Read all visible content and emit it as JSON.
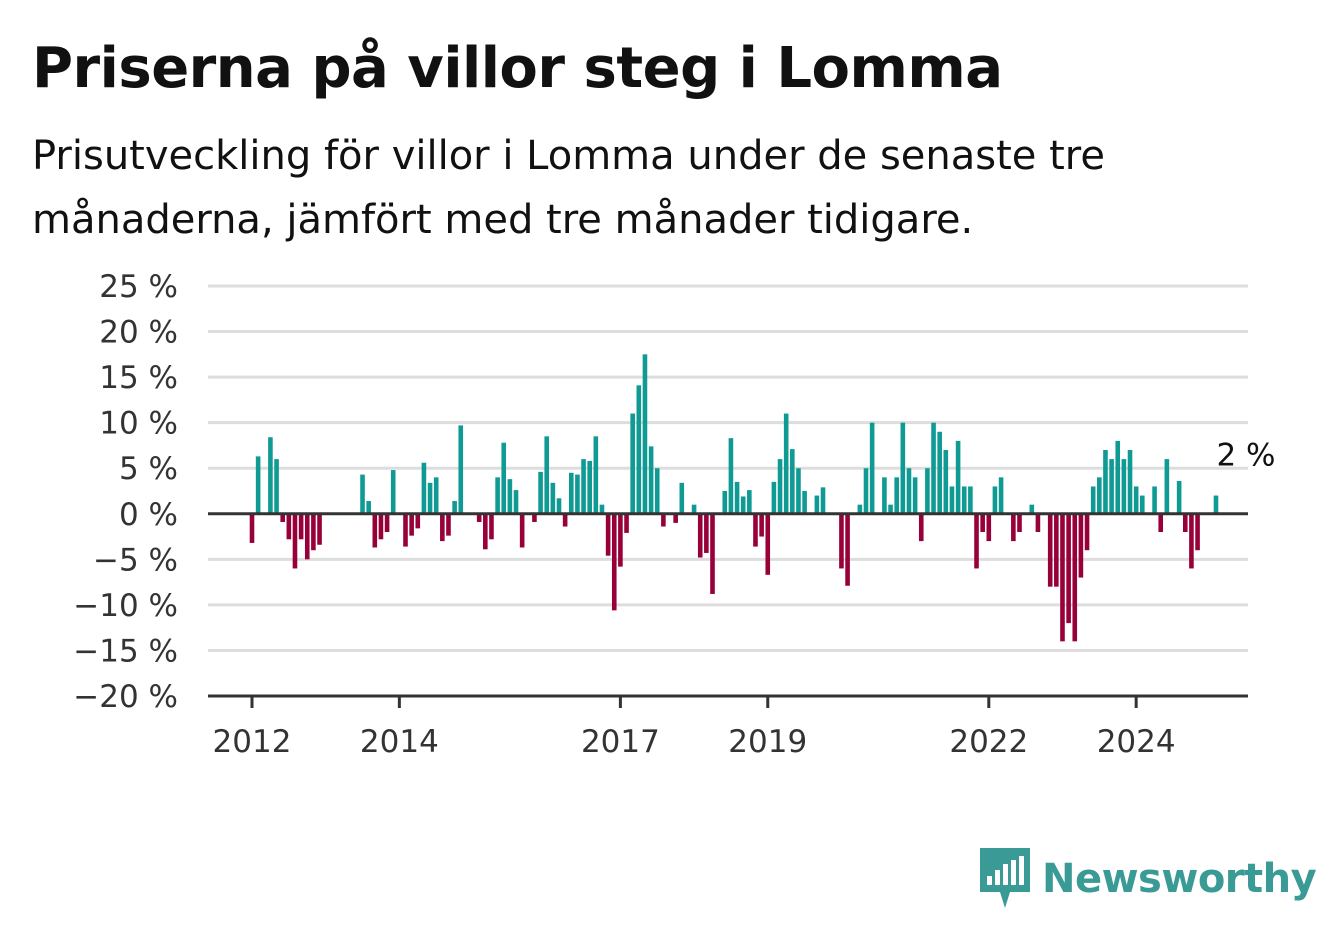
{
  "title": "Priserna på villor steg i Lomma",
  "subtitle": "Prisutveckling för villor i Lomma under de senaste tre månaderna, jämfört med tre månader tidigare.",
  "brand": {
    "name": "Newsworthy",
    "color": "#3a9a95"
  },
  "colors": {
    "positive": "#0f9b94",
    "negative": "#98003a",
    "grid": "#dddddd",
    "axis": "#333333"
  },
  "chart_data": {
    "type": "bar",
    "ylim": [
      -20,
      25
    ],
    "yticks": [
      25,
      20,
      15,
      10,
      5,
      0,
      -5,
      -10,
      -15,
      -20
    ],
    "ytick_labels": [
      "25 %",
      "20 %",
      "15 %",
      "10 %",
      "5 %",
      "0 %",
      "−5 %",
      "−10 %",
      "−15 %",
      "−20 %"
    ],
    "x_start": "2012-01",
    "xticks": [
      {
        "label": "2012",
        "index": 0
      },
      {
        "label": "2014",
        "index": 24
      },
      {
        "label": "2017",
        "index": 60
      },
      {
        "label": "2019",
        "index": 84
      },
      {
        "label": "2022",
        "index": 120
      },
      {
        "label": "2024",
        "index": 144
      }
    ],
    "end_label": "2 %",
    "grid": true,
    "values": [
      -3.2,
      6.3,
      null,
      8.4,
      6.0,
      -0.9,
      -2.8,
      -6.0,
      -2.8,
      -5.0,
      -4.0,
      -3.4,
      null,
      null,
      null,
      null,
      null,
      null,
      4.3,
      1.4,
      -3.7,
      -2.8,
      -2.0,
      4.8,
      null,
      -3.6,
      -2.4,
      -1.6,
      5.6,
      3.4,
      4.0,
      -3.0,
      -2.4,
      1.4,
      9.7,
      null,
      null,
      -0.9,
      -3.9,
      -2.8,
      4.0,
      7.8,
      3.8,
      2.6,
      -3.7,
      null,
      -0.9,
      4.6,
      8.5,
      3.4,
      1.7,
      -1.4,
      4.5,
      4.3,
      6.0,
      5.8,
      8.5,
      1.0,
      -4.6,
      -10.6,
      -5.8,
      -2.1,
      11.0,
      14.1,
      17.5,
      7.4,
      5.0,
      -1.4,
      null,
      -1.0,
      3.4,
      null,
      1.0,
      -4.8,
      -4.3,
      -8.8,
      null,
      2.5,
      8.3,
      3.5,
      1.9,
      2.6,
      -3.6,
      -2.5,
      -6.7,
      3.5,
      6.0,
      11.0,
      7.1,
      5.0,
      2.5,
      null,
      2.0,
      2.9,
      null,
      null,
      -6.0,
      -7.9,
      null,
      1.0,
      5.0,
      10.0,
      null,
      4.0,
      1.0,
      4.0,
      10.0,
      5.0,
      4.0,
      -3.0,
      5.0,
      10.0,
      9.0,
      7.0,
      3.0,
      8.0,
      3.0,
      3.0,
      -6.0,
      -2.0,
      -3.0,
      3.0,
      4.0,
      null,
      -3.0,
      -2.0,
      null,
      1.0,
      -2.0,
      null,
      -8.0,
      -8.0,
      -14.0,
      -12.0,
      -14.0,
      -7.0,
      -4.0,
      3.0,
      4.0,
      7.0,
      6.0,
      8.0,
      6.0,
      7.0,
      3.0,
      2.0,
      null,
      3.0,
      -2.0,
      6.0,
      null,
      3.6,
      -2.0,
      -6.0,
      -4.0,
      null,
      null,
      2.0
    ]
  }
}
